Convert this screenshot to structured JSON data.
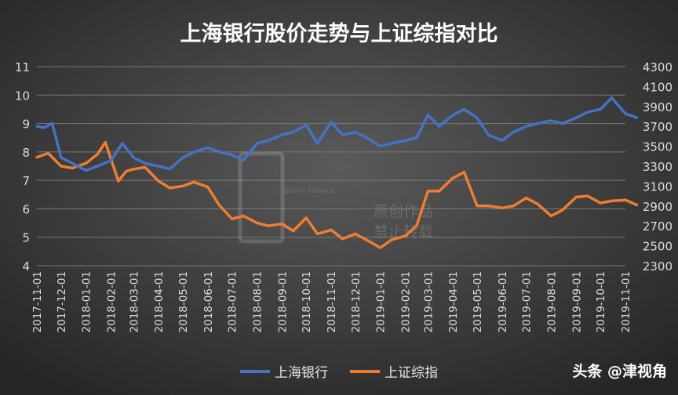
{
  "chart_data": {
    "type": "line",
    "title": "上海银行股价走势与上证综指对比",
    "x_tick_labels": [
      "2017-11-01",
      "2017-12-01",
      "2018-01-01",
      "2018-02-01",
      "2018-03-01",
      "2018-04-01",
      "2018-05-01",
      "2018-06-01",
      "2018-07-01",
      "2018-08-01",
      "2018-09-01",
      "2018-10-01",
      "2018-11-01",
      "2018-12-01",
      "2019-01-01",
      "2019-02-01",
      "2019-03-01",
      "2019-04-01",
      "2019-05-01",
      "2019-06-01",
      "2019-07-01",
      "2019-08-01",
      "2019-09-01",
      "2019-10-01",
      "2019-11-01"
    ],
    "y_left": {
      "range": [
        4,
        11
      ],
      "ticks": [
        "11",
        "10",
        "9",
        "8",
        "7",
        "6",
        "5",
        "4"
      ]
    },
    "y_right": {
      "range": [
        2300,
        4300
      ],
      "ticks": [
        "4300",
        "4100",
        "3900",
        "3700",
        "3500",
        "3300",
        "3100",
        "2900",
        "2700",
        "2500",
        "2300"
      ]
    },
    "grid": true,
    "legend_position": "bottom",
    "series": [
      {
        "name": "上海银行",
        "axis": "left",
        "color": "#4472C4",
        "x": [
          "2017-11-01",
          "2017-11-10",
          "2017-11-20",
          "2017-12-01",
          "2017-12-15",
          "2018-01-01",
          "2018-01-15",
          "2018-02-01",
          "2018-02-15",
          "2018-03-01",
          "2018-03-15",
          "2018-04-01",
          "2018-04-15",
          "2018-05-01",
          "2018-05-15",
          "2018-06-01",
          "2018-06-15",
          "2018-07-01",
          "2018-07-15",
          "2018-08-01",
          "2018-08-15",
          "2018-09-01",
          "2018-09-15",
          "2018-10-01",
          "2018-10-15",
          "2018-11-01",
          "2018-11-15",
          "2018-12-01",
          "2018-12-15",
          "2019-01-01",
          "2019-01-15",
          "2019-02-01",
          "2019-02-15",
          "2019-03-01",
          "2019-03-15",
          "2019-04-01",
          "2019-04-15",
          "2019-05-01",
          "2019-05-15",
          "2019-06-01",
          "2019-06-15",
          "2019-07-01",
          "2019-07-15",
          "2019-08-01",
          "2019-08-15",
          "2019-09-01",
          "2019-09-15",
          "2019-10-01",
          "2019-10-15",
          "2019-11-01",
          "2019-11-15"
        ],
        "values": [
          8.9,
          8.85,
          9.0,
          7.8,
          7.6,
          7.35,
          7.5,
          7.7,
          8.3,
          7.8,
          7.6,
          7.5,
          7.4,
          7.8,
          8.0,
          8.15,
          8.0,
          7.9,
          7.7,
          8.3,
          8.4,
          8.6,
          8.7,
          8.95,
          8.3,
          9.05,
          8.6,
          8.7,
          8.5,
          8.2,
          8.3,
          8.4,
          8.5,
          9.3,
          8.9,
          9.3,
          9.5,
          9.2,
          8.6,
          8.4,
          8.7,
          8.9,
          9.0,
          9.1,
          9.0,
          9.2,
          9.4,
          9.5,
          9.9,
          9.35,
          9.2
        ]
      },
      {
        "name": "上证综指",
        "axis": "right",
        "color": "#ED7D31",
        "x": [
          "2017-11-01",
          "2017-11-15",
          "2017-12-01",
          "2017-12-15",
          "2018-01-01",
          "2018-01-15",
          "2018-01-25",
          "2018-02-10",
          "2018-02-20",
          "2018-03-01",
          "2018-03-15",
          "2018-04-01",
          "2018-04-15",
          "2018-05-01",
          "2018-05-15",
          "2018-06-01",
          "2018-06-15",
          "2018-07-01",
          "2018-07-15",
          "2018-08-01",
          "2018-08-15",
          "2018-09-01",
          "2018-09-15",
          "2018-10-01",
          "2018-10-15",
          "2018-11-01",
          "2018-11-15",
          "2018-12-01",
          "2018-12-15",
          "2019-01-01",
          "2019-01-15",
          "2019-02-01",
          "2019-02-15",
          "2019-03-01",
          "2019-03-15",
          "2019-04-01",
          "2019-04-15",
          "2019-05-01",
          "2019-05-15",
          "2019-06-01",
          "2019-06-15",
          "2019-07-01",
          "2019-07-15",
          "2019-08-01",
          "2019-08-15",
          "2019-09-01",
          "2019-09-15",
          "2019-10-01",
          "2019-10-15",
          "2019-11-01",
          "2019-11-15"
        ],
        "values": [
          3390,
          3430,
          3300,
          3280,
          3330,
          3420,
          3540,
          3150,
          3250,
          3270,
          3290,
          3150,
          3080,
          3100,
          3140,
          3090,
          2910,
          2770,
          2800,
          2730,
          2700,
          2720,
          2650,
          2780,
          2620,
          2660,
          2570,
          2620,
          2560,
          2480,
          2560,
          2600,
          2700,
          3050,
          3050,
          3180,
          3240,
          2900,
          2900,
          2880,
          2900,
          2980,
          2920,
          2800,
          2860,
          2990,
          3000,
          2930,
          2950,
          2960,
          2910
        ]
      }
    ]
  },
  "watermark": {
    "brand": "Brand Finance",
    "line1": "原创作品",
    "line2": "禁止转载"
  },
  "credit": "头条 @津视角"
}
